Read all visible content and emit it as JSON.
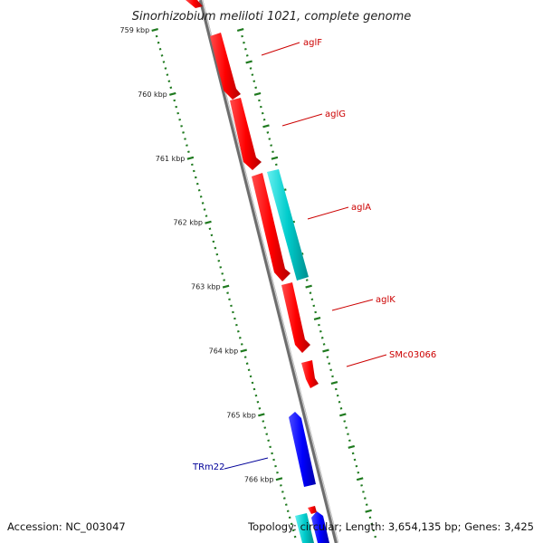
{
  "title": "Sinorhizobium meliloti 1021, complete genome",
  "footer": {
    "accession": "Accession: NC_003047",
    "topology": "Topology: circular; Length: 3,654,135 bp; Genes: 3,425"
  },
  "colors": {
    "backbone": "#8c8c8c",
    "ticks": "#1f7a1f",
    "forward_gene": "#ff0000",
    "reverse_gene": "#0000ff",
    "rna_gene": "#00cccc",
    "forward_label": "#cc0000",
    "reverse_label": "#000099"
  },
  "scale_ticks": [
    {
      "label": "759 kbp"
    },
    {
      "label": "760 kbp"
    },
    {
      "label": "761 kbp"
    },
    {
      "label": "762 kbp"
    },
    {
      "label": "763 kbp"
    },
    {
      "label": "764 kbp"
    },
    {
      "label": "765 kbp"
    },
    {
      "label": "766 kbp"
    }
  ],
  "gene_labels": [
    {
      "name": "aglF",
      "strand": "forward"
    },
    {
      "name": "aglG",
      "strand": "forward"
    },
    {
      "name": "aglA",
      "strand": "forward"
    },
    {
      "name": "aglK",
      "strand": "forward"
    },
    {
      "name": "SMc03066",
      "strand": "forward"
    },
    {
      "name": "TRm22",
      "strand": "reverse"
    }
  ]
}
